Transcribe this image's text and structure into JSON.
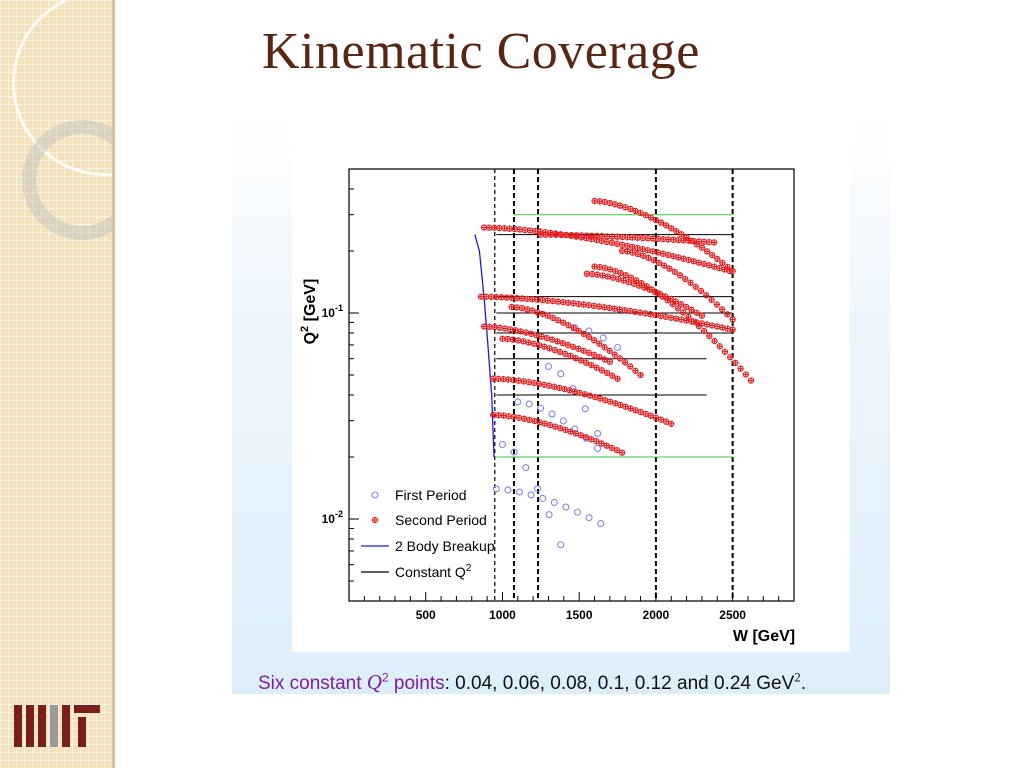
{
  "slide": {
    "title": "Kinematic Coverage",
    "caption": {
      "pre": "Six constant ",
      "q_symbol": "Q",
      "q_exp": "2",
      "post_hl": " points",
      "values": ": 0.04, 0.06, 0.08, 0.1, 0.12 and 0.24 GeV",
      "unit_exp": "2",
      "end": "."
    },
    "logo": "MIT"
  },
  "colors": {
    "title": "#5a2614",
    "first_period": "#7f86e8",
    "second_period": "#e41a1c",
    "breakup": "#1a1adf",
    "constant_q2": "#000000",
    "limit": "#33cc33"
  },
  "chart_data": {
    "type": "scatter",
    "xlabel": "W [GeV]",
    "ylabel_main": "Q",
    "ylabel_exp": "2",
    "ylabel_unit": " [GeV]",
    "xlim": [
      0,
      2900
    ],
    "ylim": [
      0.004,
      0.5
    ],
    "log_y": true,
    "x_ticks": [
      "500",
      "1000",
      "1500",
      "2000",
      "2500"
    ],
    "x_tick_values": [
      500,
      1000,
      1500,
      2000,
      2500
    ],
    "y_tick_labels": [
      {
        "base": "10",
        "exp": "-2",
        "value": 0.01
      },
      {
        "base": "10",
        "exp": "-1",
        "value": 0.1
      }
    ],
    "legend_position": "bottom-left",
    "legend": [
      {
        "label": "First Period",
        "kind": "open-circle"
      },
      {
        "label": "Second Period",
        "kind": "cross"
      },
      {
        "label": "2 Body Breakup",
        "kind": "blue-line"
      },
      {
        "label": "Constant Q",
        "exp": "2",
        "kind": "black-line"
      }
    ],
    "vertical_lines": [
      950,
      1075,
      1232,
      2000,
      2500
    ],
    "constant_q2": [
      {
        "q2": 0.04,
        "x": [
          960,
          2330
        ]
      },
      {
        "q2": 0.06,
        "x": [
          960,
          2330
        ]
      },
      {
        "q2": 0.08,
        "x": [
          960,
          2500
        ]
      },
      {
        "q2": 0.1,
        "x": [
          960,
          2500
        ]
      },
      {
        "q2": 0.12,
        "x": [
          960,
          2500
        ]
      },
      {
        "q2": 0.24,
        "x": [
          960,
          2500
        ]
      }
    ],
    "limit_lines": [
      {
        "q2": 0.02,
        "x": [
          960,
          2500
        ]
      },
      {
        "q2": 0.3,
        "x": [
          1075,
          2500
        ]
      }
    ],
    "breakup_curve": [
      [
        820,
        0.24
      ],
      [
        850,
        0.2
      ],
      [
        880,
        0.12
      ],
      [
        905,
        0.07
      ],
      [
        930,
        0.04
      ],
      [
        945,
        0.02
      ]
    ],
    "series": [
      {
        "name": "First Period",
        "arcs": [
          {
            "x": [
              960,
              1640
            ],
            "y": [
              0.014,
              0.0095
            ]
          },
          {
            "x": [
              1000,
              1380
            ],
            "y": [
              0.023,
              0.0075
            ]
          },
          {
            "x": [
              1100,
              1620
            ],
            "y": [
              0.037,
              0.022
            ]
          },
          {
            "x": [
              1300,
              1620
            ],
            "y": [
              0.055,
              0.026
            ]
          },
          {
            "x": [
              1470,
              1750
            ],
            "y": [
              0.085,
              0.068
            ]
          }
        ]
      },
      {
        "name": "Second Period",
        "arcs": [
          {
            "x": [
              940,
              1780
            ],
            "y": [
              0.032,
              0.021
            ]
          },
          {
            "x": [
              940,
              2100
            ],
            "y": [
              0.048,
              0.029
            ]
          },
          {
            "x": [
              1000,
              1750
            ],
            "y": [
              0.075,
              0.048
            ]
          },
          {
            "x": [
              880,
              1700
            ],
            "y": [
              0.086,
              0.058
            ]
          },
          {
            "x": [
              1060,
              1900
            ],
            "y": [
              0.107,
              0.05
            ]
          },
          {
            "x": [
              860,
              2500
            ],
            "y": [
              0.12,
              0.083
            ]
          },
          {
            "x": [
              1600,
              2620
            ],
            "y": [
              0.168,
              0.047
            ]
          },
          {
            "x": [
              1550,
              2300
            ],
            "y": [
              0.155,
              0.097
            ]
          },
          {
            "x": [
              1780,
              2500
            ],
            "y": [
              0.2,
              0.093
            ]
          },
          {
            "x": [
              1250,
              2380
            ],
            "y": [
              0.24,
              0.22
            ]
          },
          {
            "x": [
              880,
              2480
            ],
            "y": [
              0.26,
              0.16
            ]
          },
          {
            "x": [
              1600,
              2500
            ],
            "y": [
              0.35,
              0.16
            ]
          }
        ]
      }
    ]
  }
}
